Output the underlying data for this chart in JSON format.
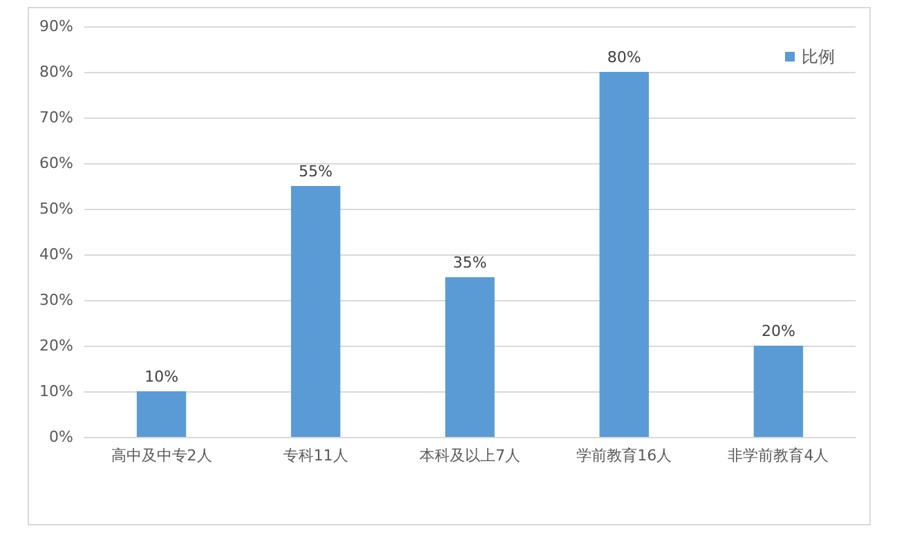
{
  "chart_data": {
    "type": "bar",
    "categories": [
      "高中及中专2人",
      "专科11人",
      "本科及以上7人",
      "学前教育16人",
      "非学前教育4人"
    ],
    "series": [
      {
        "name": "比例",
        "color": "#5b9bd5",
        "values": [
          10,
          55,
          35,
          80,
          20
        ],
        "value_labels": [
          "10%",
          "55%",
          "35%",
          "80%",
          "20%"
        ]
      }
    ],
    "ylim": [
      0,
      90
    ],
    "yticks": [
      {
        "value": 0,
        "label": "0%"
      },
      {
        "value": 10,
        "label": "10%"
      },
      {
        "value": 20,
        "label": "20%"
      },
      {
        "value": 30,
        "label": "30%"
      },
      {
        "value": 40,
        "label": "40%"
      },
      {
        "value": 50,
        "label": "50%"
      },
      {
        "value": 60,
        "label": "60%"
      },
      {
        "value": 70,
        "label": "70%"
      },
      {
        "value": 80,
        "label": "80%"
      },
      {
        "value": 90,
        "label": "90%"
      }
    ],
    "grid": "y",
    "legend": "top right"
  }
}
